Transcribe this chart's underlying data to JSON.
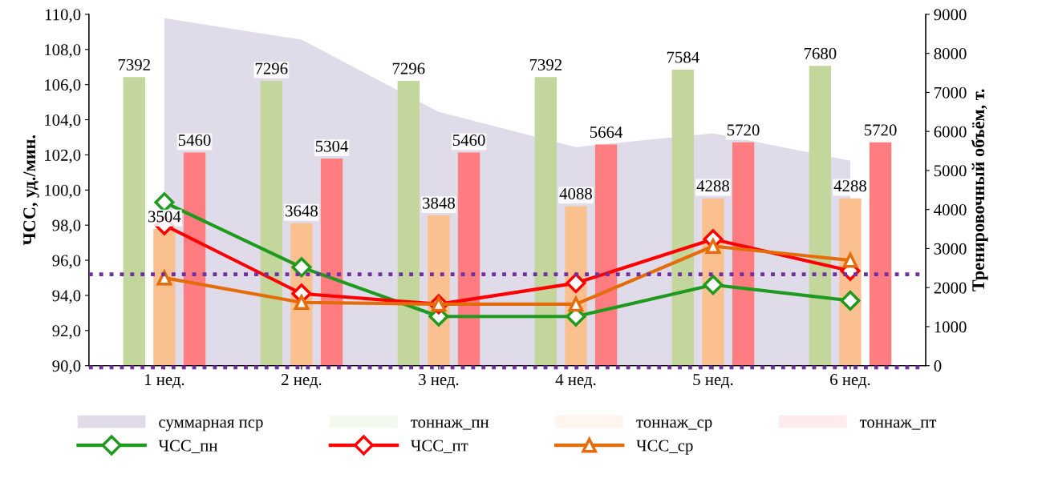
{
  "chart_data": {
    "type": "bar",
    "ylabel": "ЧСС, уд./мин.",
    "y2label": "Тренировочный объём, т.",
    "categories": [
      "1 нед.",
      "2 нед.",
      "3 нед.",
      "4 нед.",
      "5 нед.",
      "6 нед."
    ],
    "ylim": [
      90,
      110
    ],
    "yticks": [
      {
        "value": 90,
        "label": "90,0"
      },
      {
        "value": 92,
        "label": "92,0"
      },
      {
        "value": 94,
        "label": "94,0"
      },
      {
        "value": 96,
        "label": "96,0"
      },
      {
        "value": 98,
        "label": "98,0"
      },
      {
        "value": 100,
        "label": "100,0"
      },
      {
        "value": 102,
        "label": "102,0"
      },
      {
        "value": 104,
        "label": "104,0"
      },
      {
        "value": 106,
        "label": "106,0"
      },
      {
        "value": 108,
        "label": "108,0"
      },
      {
        "value": 110,
        "label": "110,0"
      }
    ],
    "y2lim": [
      0,
      9000
    ],
    "y2ticks": [
      0,
      1000,
      2000,
      3000,
      4000,
      5000,
      6000,
      7000,
      8000,
      9000
    ],
    "grid": false,
    "legend": "bottom",
    "ref_lines": [
      {
        "axis": "y",
        "value": 95.2,
        "color": "#7030a0",
        "line_style": "dotted"
      },
      {
        "axis": "y",
        "value": 89.9,
        "color": "#7030a0",
        "line_style": "dotted"
      }
    ],
    "series": [
      {
        "name": "суммарная пср",
        "type": "area",
        "axis": "y2",
        "color": "#e0dbe8",
        "values": [
          8900,
          8350,
          6500,
          5600,
          5950,
          5250
        ]
      },
      {
        "name": "тоннаж_пн",
        "axis": "y2",
        "color": "#c3d69b",
        "values": [
          7392,
          7296,
          7296,
          7392,
          7584,
          7680
        ],
        "value_labels": [
          "7392",
          "7296",
          "7296",
          "7392",
          "7584",
          "7680"
        ]
      },
      {
        "name": "тоннаж_ср",
        "axis": "y2",
        "color": "#fac090",
        "values": [
          3504,
          3648,
          3848,
          4088,
          4288,
          4288
        ],
        "value_labels": [
          "3504",
          "3648",
          "3848",
          "4088",
          "4288",
          "4288"
        ]
      },
      {
        "name": "тоннаж_пт",
        "axis": "y2",
        "color": "#ff7c80",
        "values": [
          5460,
          5304,
          5460,
          5664,
          5720,
          5720
        ],
        "value_labels": [
          "5460",
          "5304",
          "5460",
          "5664",
          "5720",
          "5720"
        ]
      },
      {
        "name": "ЧСС_пн",
        "type": "line",
        "axis": "y",
        "color": "#1e9a1e",
        "marker": "diamond",
        "values": [
          99.3,
          95.6,
          92.8,
          92.8,
          94.6,
          93.7
        ]
      },
      {
        "name": "ЧСС_пт",
        "type": "line",
        "axis": "y",
        "color": "#ff0000",
        "marker": "diamond",
        "values": [
          98.0,
          94.1,
          93.5,
          94.7,
          97.2,
          95.4
        ]
      },
      {
        "name": "ЧСС_ср",
        "type": "line",
        "axis": "y",
        "color": "#e46c0a",
        "marker": "triangle",
        "values": [
          95.0,
          93.6,
          93.5,
          93.5,
          96.8,
          96.0
        ]
      }
    ]
  }
}
